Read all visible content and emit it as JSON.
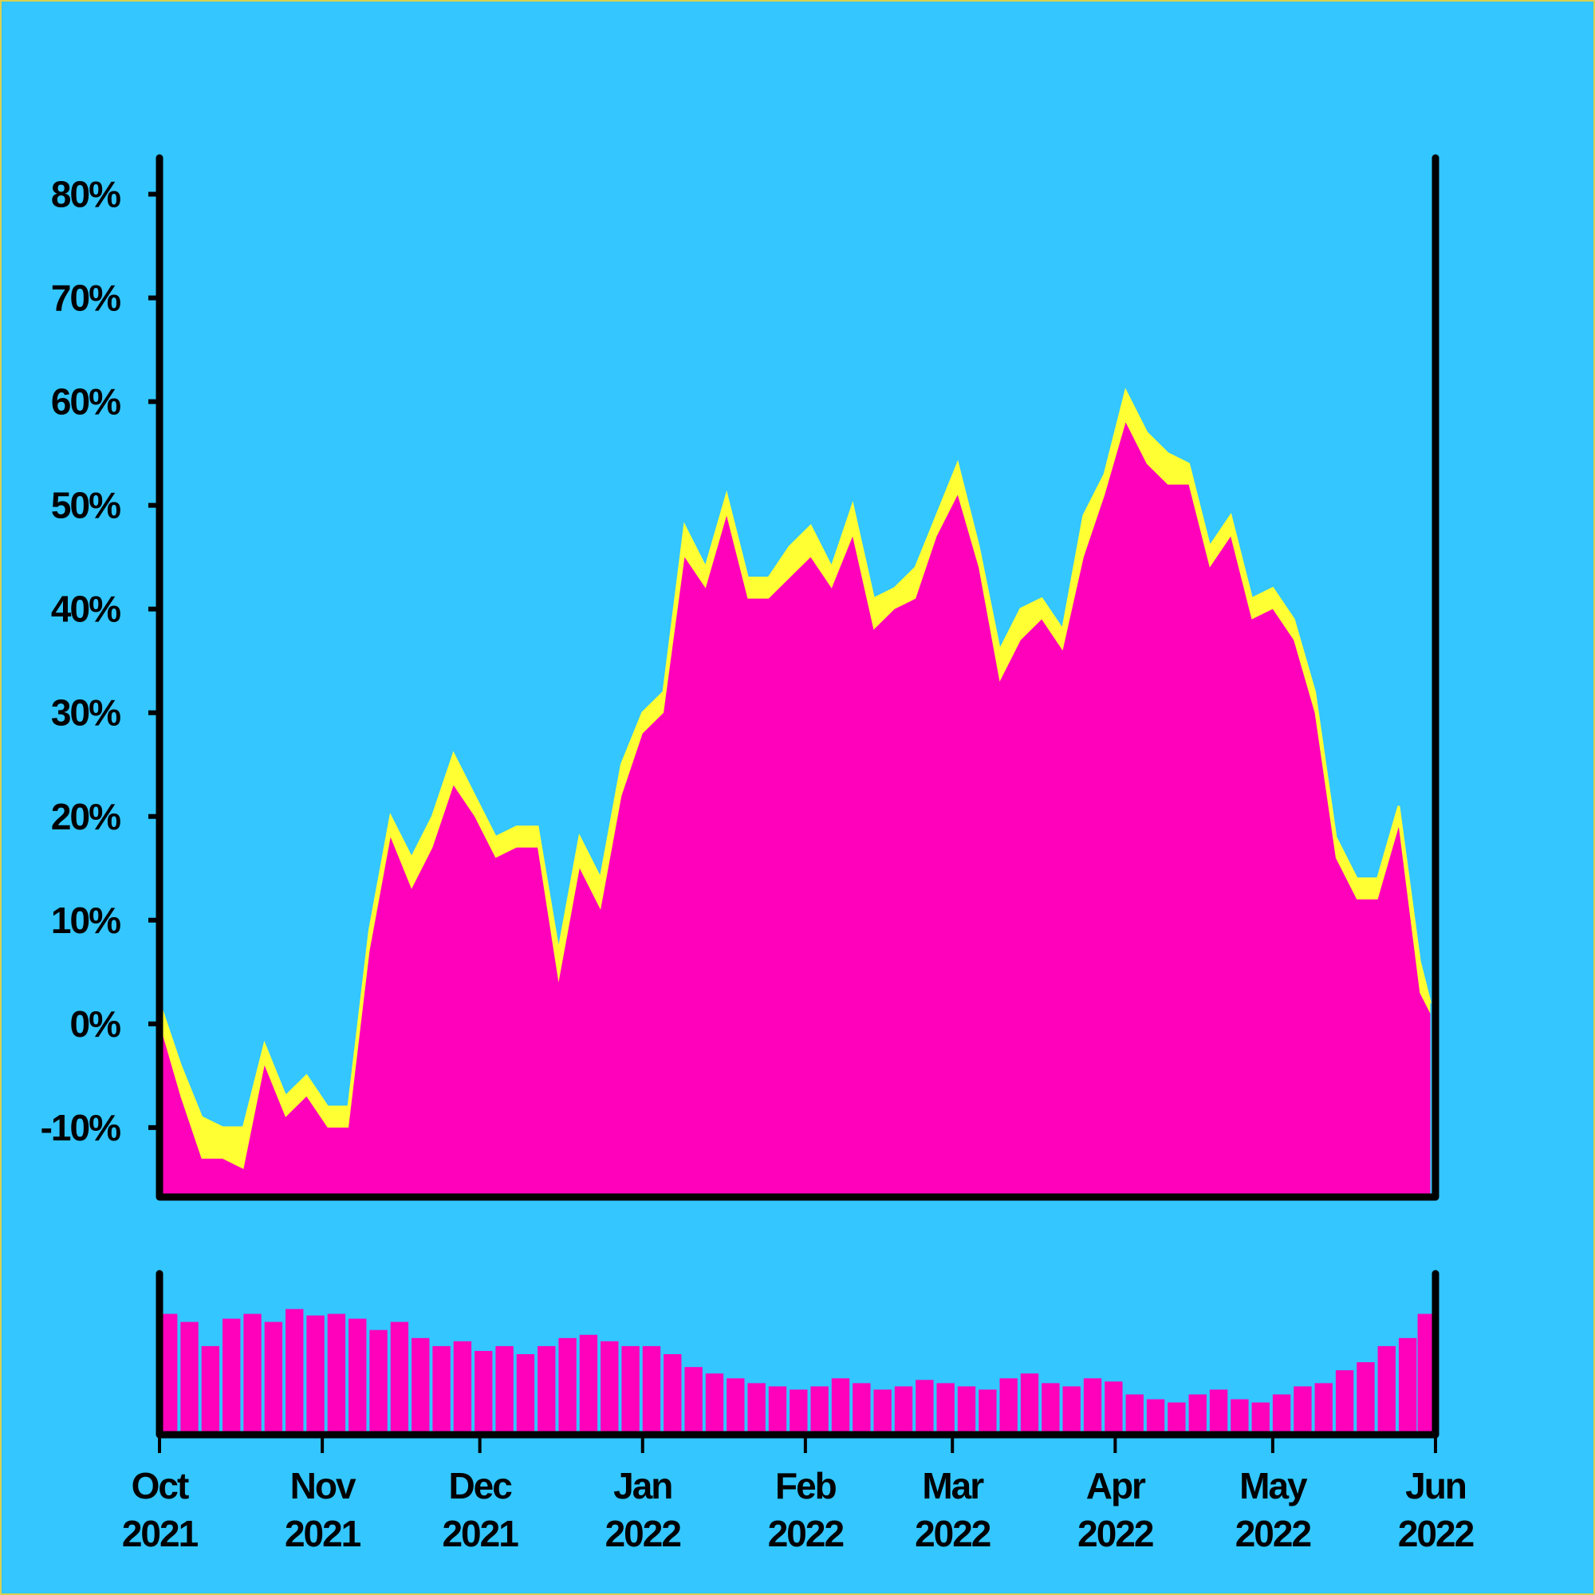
{
  "chart_data": [
    {
      "type": "area",
      "x": [
        "2021-10-01",
        "2021-10-05",
        "2021-10-09",
        "2021-10-13",
        "2021-10-17",
        "2021-10-21",
        "2021-10-25",
        "2021-10-29",
        "2021-11-02",
        "2021-11-06",
        "2021-11-10",
        "2021-11-14",
        "2021-11-18",
        "2021-11-22",
        "2021-11-26",
        "2021-11-30",
        "2021-12-04",
        "2021-12-08",
        "2021-12-12",
        "2021-12-16",
        "2021-12-20",
        "2021-12-24",
        "2021-12-28",
        "2022-01-01",
        "2022-01-05",
        "2022-01-09",
        "2022-01-13",
        "2022-01-17",
        "2022-01-21",
        "2022-01-25",
        "2022-01-29",
        "2022-02-02",
        "2022-02-06",
        "2022-02-10",
        "2022-02-14",
        "2022-02-18",
        "2022-02-22",
        "2022-02-26",
        "2022-03-02",
        "2022-03-06",
        "2022-03-10",
        "2022-03-14",
        "2022-03-18",
        "2022-03-22",
        "2022-03-26",
        "2022-03-30",
        "2022-04-03",
        "2022-04-07",
        "2022-04-11",
        "2022-04-15",
        "2022-04-19",
        "2022-04-23",
        "2022-04-27",
        "2022-05-01",
        "2022-05-05",
        "2022-05-09",
        "2022-05-13",
        "2022-05-17",
        "2022-05-21",
        "2022-05-25",
        "2022-05-29",
        "2022-05-31"
      ],
      "series": [
        {
          "color": "#ffff33",
          "values": [
            2,
            -4,
            -9,
            -10,
            -10,
            -2,
            -7,
            -5,
            -8,
            -8,
            9,
            20,
            16,
            20,
            26,
            22,
            18,
            19,
            19,
            7,
            18,
            14,
            25,
            30,
            32,
            48,
            44,
            51,
            43,
            43,
            46,
            48,
            44,
            50,
            41,
            42,
            44,
            49,
            54,
            46,
            36,
            40,
            41,
            38,
            49,
            53,
            61,
            57,
            55,
            54,
            46,
            49,
            41,
            42,
            39,
            32,
            18,
            14,
            14,
            21,
            6,
            2
          ]
        },
        {
          "color": "#ff00bb",
          "values": [
            0,
            -7,
            -13,
            -13,
            -14,
            -4,
            -9,
            -7,
            -10,
            -10,
            7,
            18,
            13,
            17,
            23,
            20,
            16,
            17,
            17,
            4,
            15,
            11,
            22,
            28,
            30,
            45,
            42,
            49,
            41,
            41,
            43,
            45,
            42,
            47,
            38,
            40,
            41,
            47,
            51,
            44,
            33,
            37,
            39,
            36,
            45,
            51,
            58,
            54,
            52,
            52,
            44,
            47,
            39,
            40,
            37,
            30,
            16,
            12,
            12,
            19,
            3,
            1
          ]
        }
      ],
      "xlim": [
        "2021-10-01",
        "2022-06-01"
      ],
      "ylim": [
        -16.7,
        83.5
      ],
      "yticks": [
        {
          "value": -10,
          "label": "-10%"
        },
        {
          "value": 0,
          "label": "0%"
        },
        {
          "value": 10,
          "label": "10%"
        },
        {
          "value": 20,
          "label": "20%"
        },
        {
          "value": 30,
          "label": "30%"
        },
        {
          "value": 40,
          "label": "40%"
        },
        {
          "value": 50,
          "label": "50%"
        },
        {
          "value": 60,
          "label": "60%"
        },
        {
          "value": 70,
          "label": "70%"
        },
        {
          "value": 80,
          "label": "80%"
        }
      ]
    },
    {
      "type": "bar",
      "x": [
        "2021-10-01",
        "2021-10-05",
        "2021-10-09",
        "2021-10-13",
        "2021-10-17",
        "2021-10-21",
        "2021-10-25",
        "2021-10-29",
        "2021-11-02",
        "2021-11-06",
        "2021-11-10",
        "2021-11-14",
        "2021-11-18",
        "2021-11-22",
        "2021-11-26",
        "2021-11-30",
        "2021-12-04",
        "2021-12-08",
        "2021-12-12",
        "2021-12-16",
        "2021-12-20",
        "2021-12-24",
        "2021-12-28",
        "2022-01-01",
        "2022-01-05",
        "2022-01-09",
        "2022-01-13",
        "2022-01-17",
        "2022-01-21",
        "2022-01-25",
        "2022-01-29",
        "2022-02-02",
        "2022-02-06",
        "2022-02-10",
        "2022-02-14",
        "2022-02-18",
        "2022-02-22",
        "2022-02-26",
        "2022-03-02",
        "2022-03-06",
        "2022-03-10",
        "2022-03-14",
        "2022-03-18",
        "2022-03-22",
        "2022-03-26",
        "2022-03-30",
        "2022-04-03",
        "2022-04-07",
        "2022-04-11",
        "2022-04-15",
        "2022-04-19",
        "2022-04-23",
        "2022-04-27",
        "2022-05-01",
        "2022-05-05",
        "2022-05-09",
        "2022-05-13",
        "2022-05-17",
        "2022-05-21",
        "2022-05-25",
        "2022-05-29",
        "2022-05-31"
      ],
      "values": [
        75,
        70,
        55,
        72,
        75,
        70,
        78,
        74,
        75,
        72,
        65,
        70,
        60,
        55,
        58,
        52,
        55,
        50,
        55,
        60,
        62,
        58,
        55,
        55,
        50,
        42,
        38,
        35,
        32,
        30,
        28,
        30,
        35,
        32,
        28,
        30,
        34,
        32,
        30,
        28,
        35,
        38,
        32,
        30,
        35,
        33,
        25,
        22,
        20,
        25,
        28,
        22,
        20,
        25,
        30,
        32,
        40,
        45,
        55,
        60,
        70,
        75
      ],
      "color": "#ff00bb",
      "xlim": [
        "2021-10-01",
        "2022-06-01"
      ],
      "ylim": [
        0,
        100
      ],
      "xticks": [
        {
          "value": "2021-10-01",
          "label": "Oct 2021"
        },
        {
          "value": "2021-11-01",
          "label": "Nov 2021"
        },
        {
          "value": "2021-12-01",
          "label": "Dec 2021"
        },
        {
          "value": "2022-01-01",
          "label": "Jan 2022"
        },
        {
          "value": "2022-02-01",
          "label": "Feb 2022"
        },
        {
          "value": "2022-03-01",
          "label": "Mar 2022"
        },
        {
          "value": "2022-04-01",
          "label": "Apr 2022"
        },
        {
          "value": "2022-05-01",
          "label": "May 2022"
        },
        {
          "value": "2022-06-01",
          "label": "Jun 2022"
        }
      ]
    }
  ]
}
